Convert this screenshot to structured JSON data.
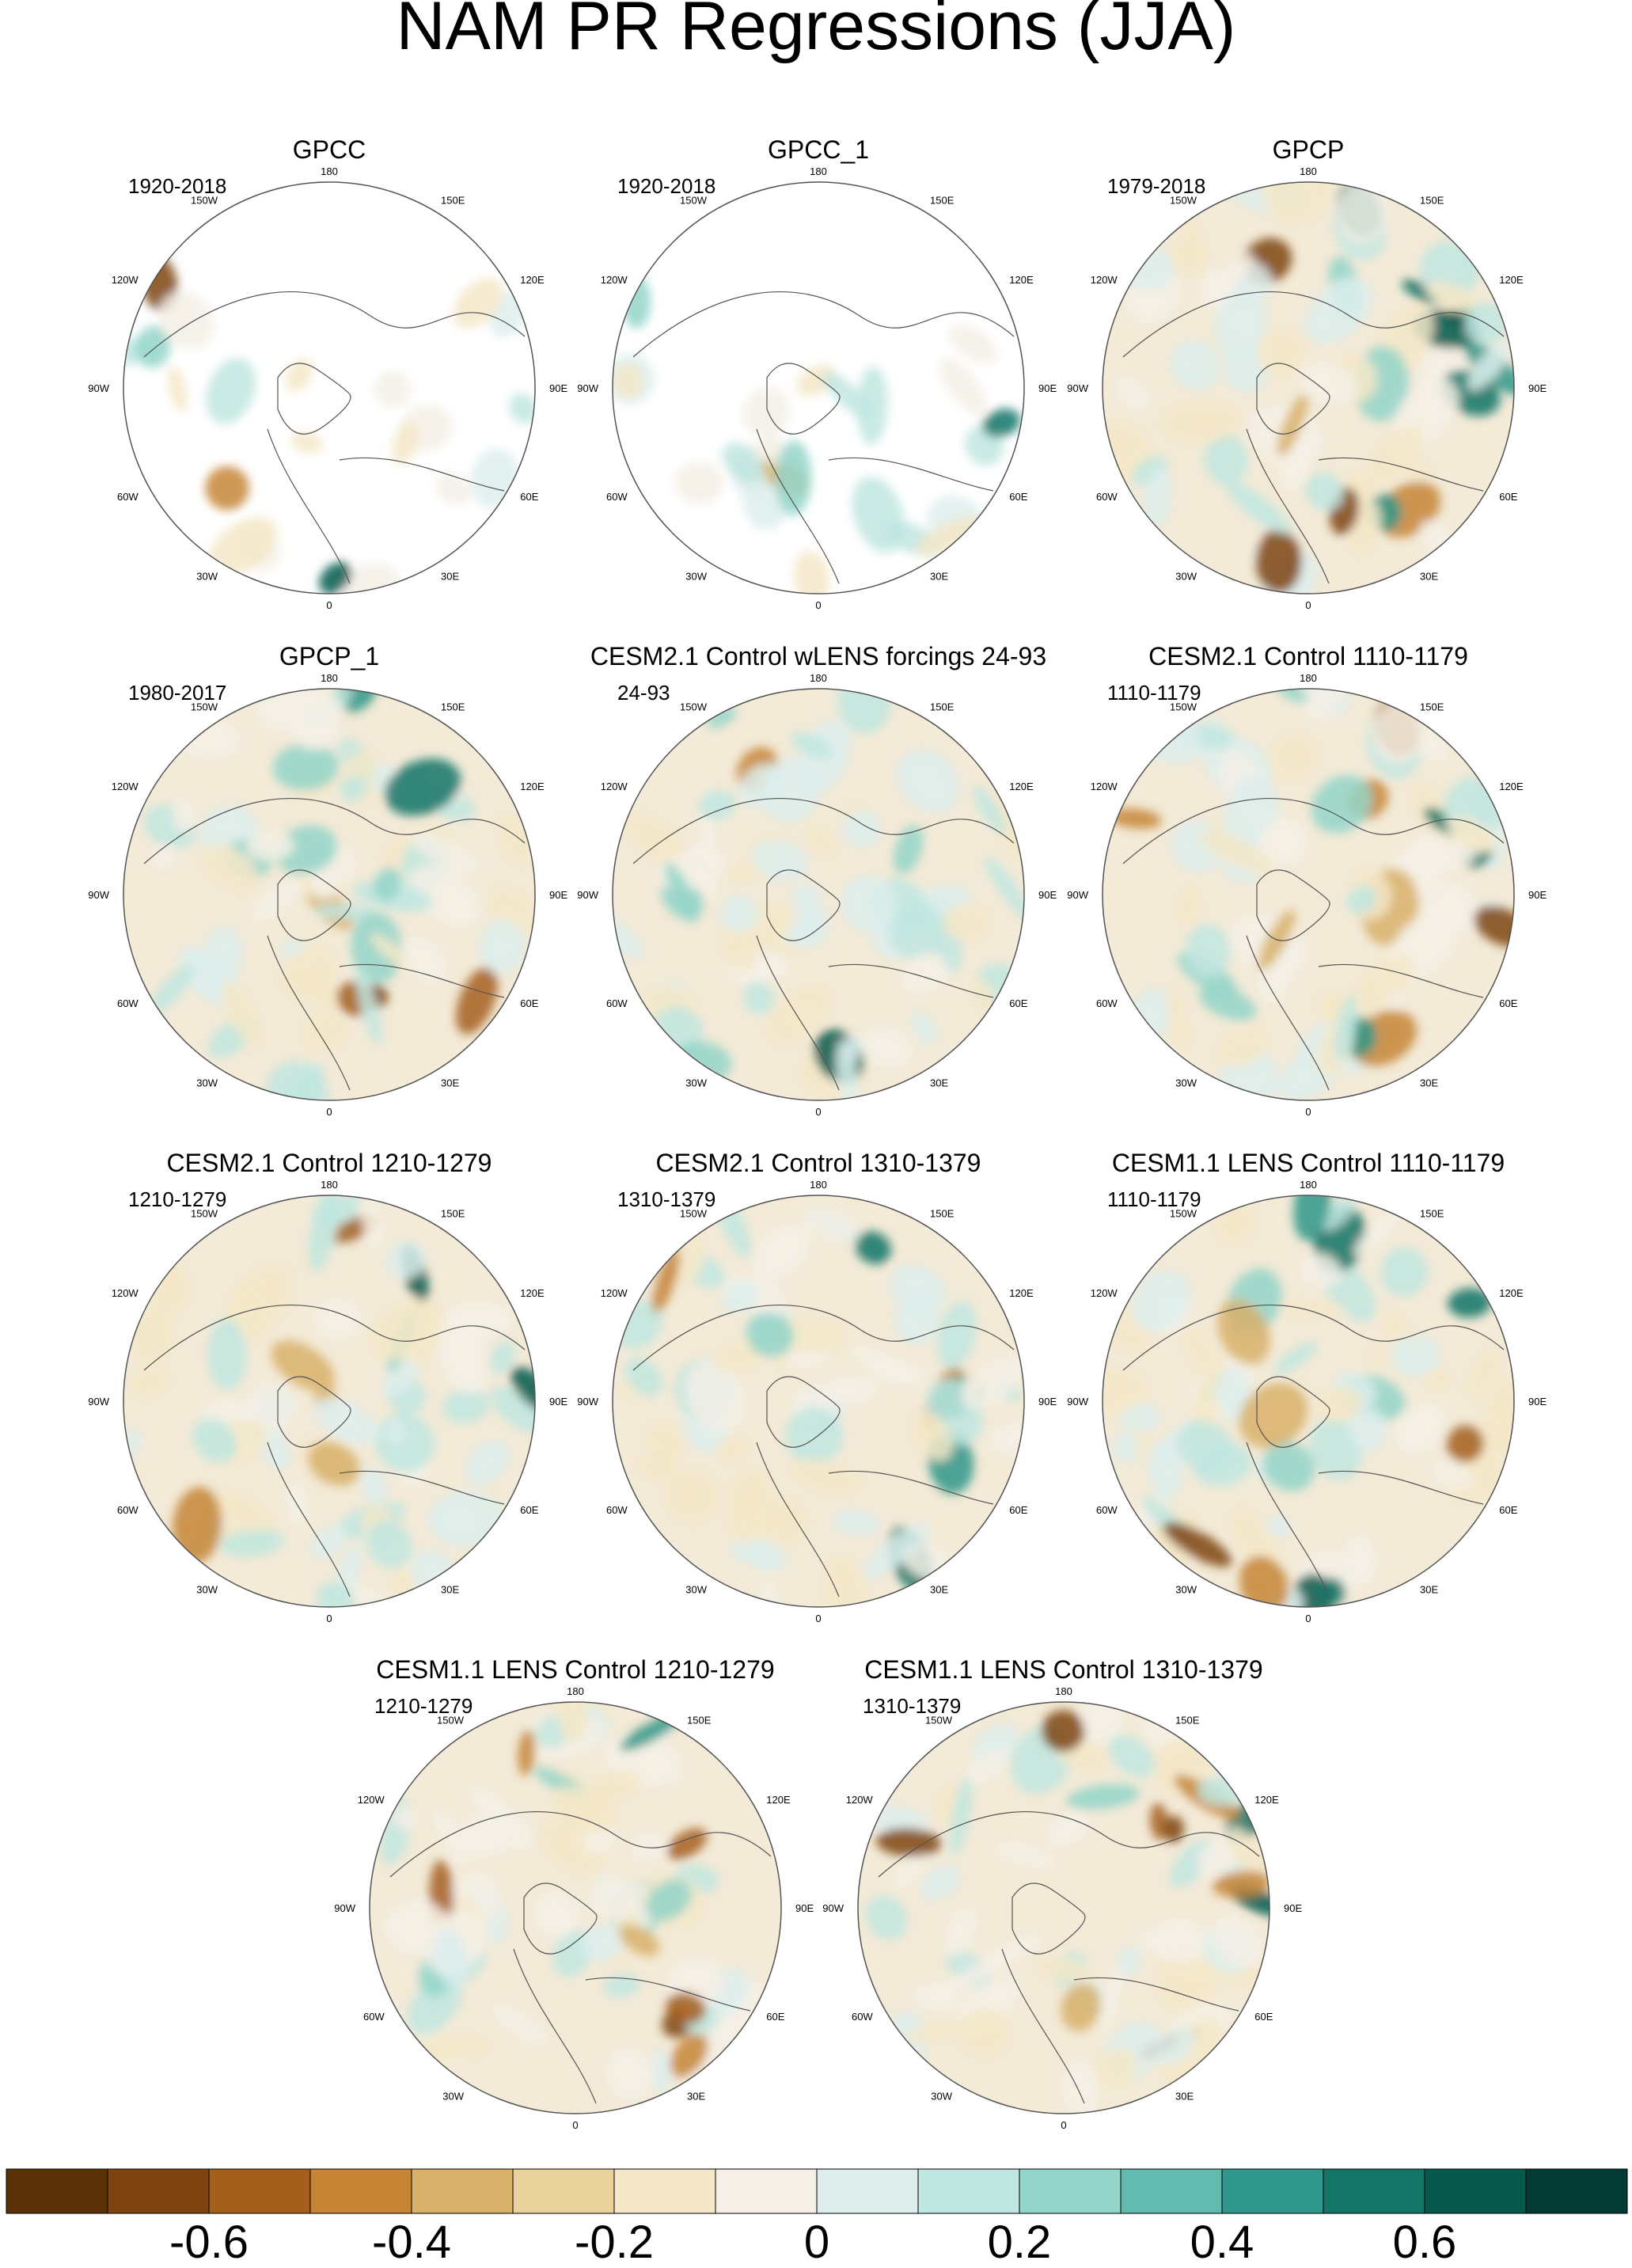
{
  "title": "NAM PR Regressions (JJA)",
  "lon_labels": [
    "180",
    "150E",
    "120E",
    "90E",
    "60E",
    "30E",
    "0",
    "30W",
    "60W",
    "90W",
    "120W",
    "150W"
  ],
  "panels": [
    {
      "title": "GPCC",
      "period": "1920-2018",
      "masked": true
    },
    {
      "title": "GPCC_1",
      "period": "1920-2018",
      "masked": true
    },
    {
      "title": "GPCP",
      "period": "1979-2018",
      "masked": false
    },
    {
      "title": "GPCP_1",
      "period": "1980-2017",
      "masked": false
    },
    {
      "title": "CESM2.1 Control wLENS forcings 24-93",
      "period": "24-93",
      "masked": false
    },
    {
      "title": "CESM2.1 Control 1110-1179",
      "period": "1110-1179",
      "masked": false
    },
    {
      "title": "CESM2.1 Control 1210-1279",
      "period": "1210-1279",
      "masked": false
    },
    {
      "title": "CESM2.1 Control 1310-1379",
      "period": "1310-1379",
      "masked": false
    },
    {
      "title": "CESM1.1 LENS Control 1110-1179",
      "period": "1110-1179",
      "masked": false
    },
    {
      "title": "CESM1.1 LENS Control 1210-1279",
      "period": "1210-1279",
      "masked": false
    },
    {
      "title": "CESM1.1 LENS Control 1310-1379",
      "period": "1310-1379",
      "masked": false
    }
  ],
  "colorbar": {
    "colors": [
      "#5a3208",
      "#7e4410",
      "#a55f1c",
      "#c58535",
      "#d8b06a",
      "#e9d29c",
      "#f5e8c8",
      "#f4f0e6",
      "#ddeeed",
      "#bfe6e0",
      "#93d5c9",
      "#62bbae",
      "#2e968a",
      "#137467",
      "#07594d",
      "#023b33"
    ],
    "tick_labels": [
      "-0.6",
      "-0.4",
      "-0.2",
      "0",
      "0.2",
      "0.4",
      "0.6"
    ]
  }
}
